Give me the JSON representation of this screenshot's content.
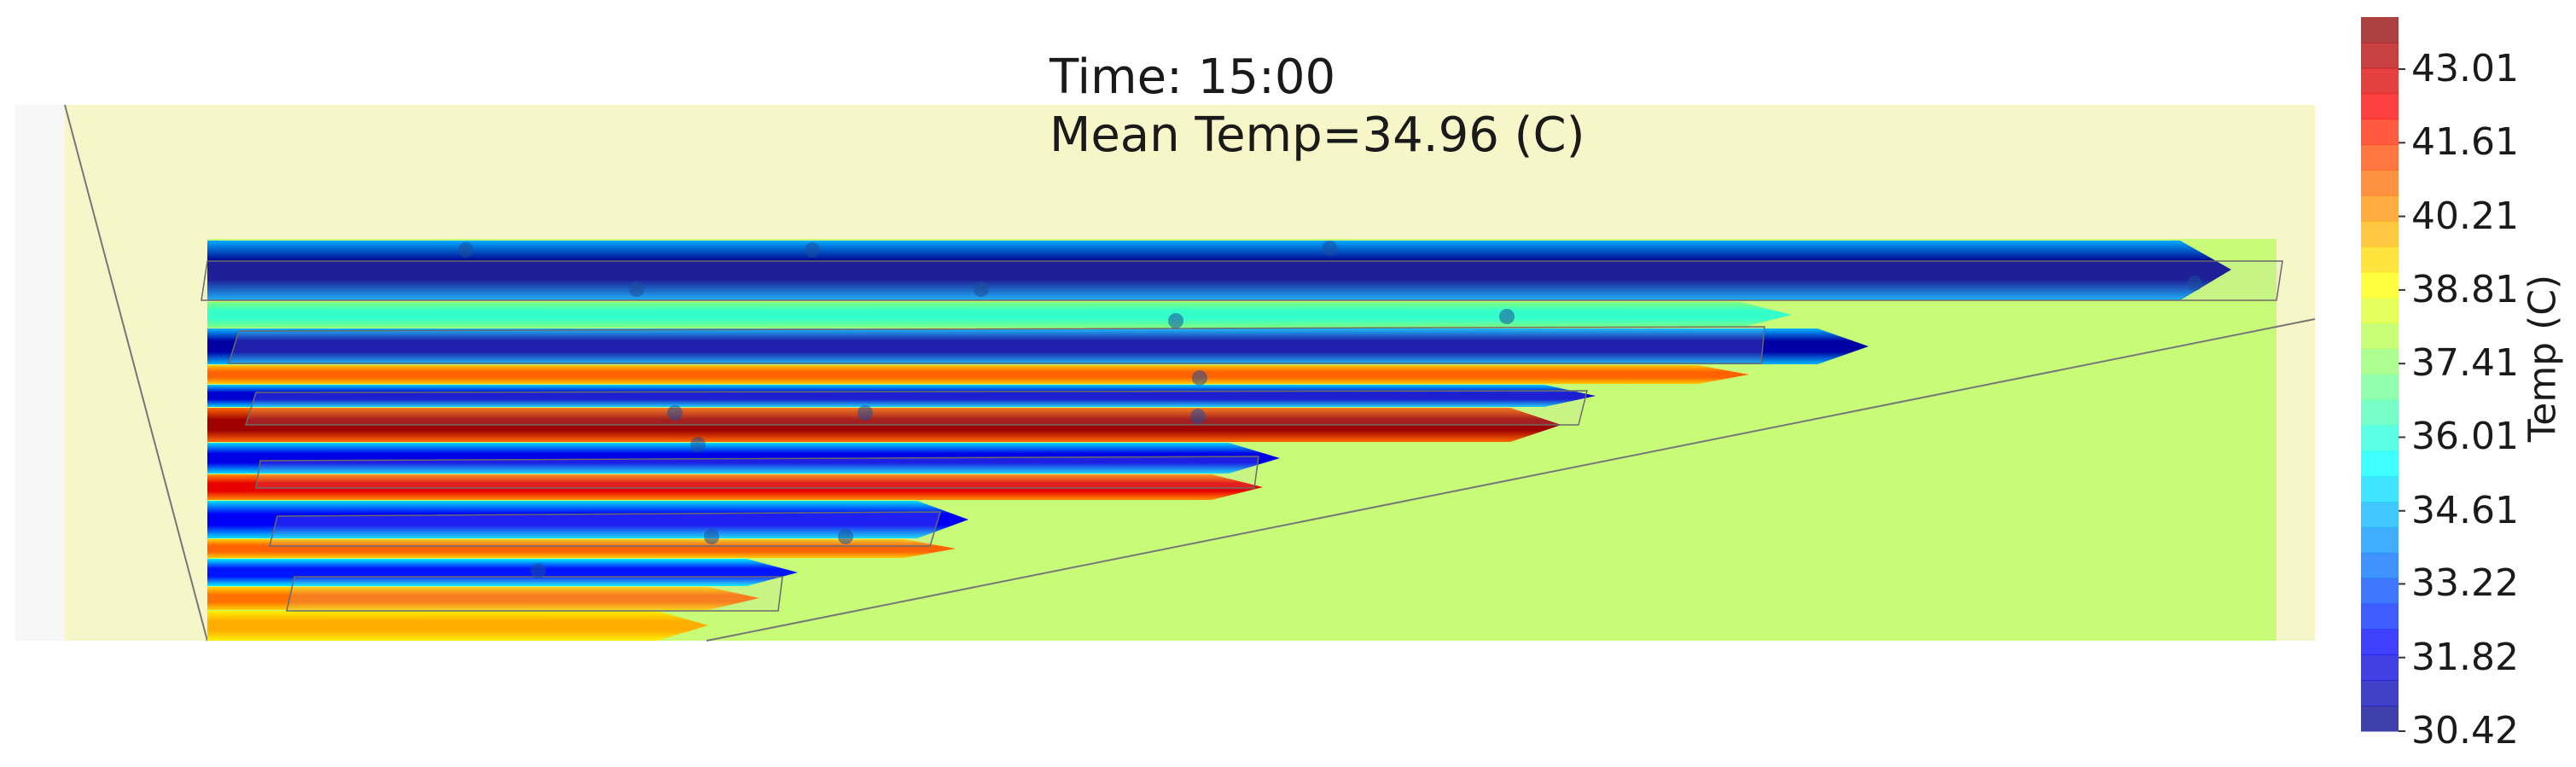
{
  "chart_data": {
    "type": "heatmap",
    "title": "Time: 15:00",
    "subtitle": "Mean Temp=34.96 (C)",
    "colorbar": {
      "label": "Temp (C)",
      "range": [
        30.42,
        44.0
      ],
      "ticks": [
        30.42,
        31.82,
        33.22,
        34.61,
        36.01,
        37.41,
        38.81,
        40.21,
        41.61,
        43.01
      ],
      "tick_labels": [
        "30.42",
        "31.82",
        "33.22",
        "34.61",
        "36.01",
        "37.41",
        "38.81",
        "40.21",
        "41.61",
        "43.01"
      ],
      "colormap": "jet"
    },
    "background_temp": 38.2,
    "colors": {
      "ground": "#c8fb78",
      "sky_panel": "#f7f6c9",
      "side_panel": "#f7f7f7",
      "edge_line": "#777777",
      "sensor": "#1b4e9a"
    }
  }
}
